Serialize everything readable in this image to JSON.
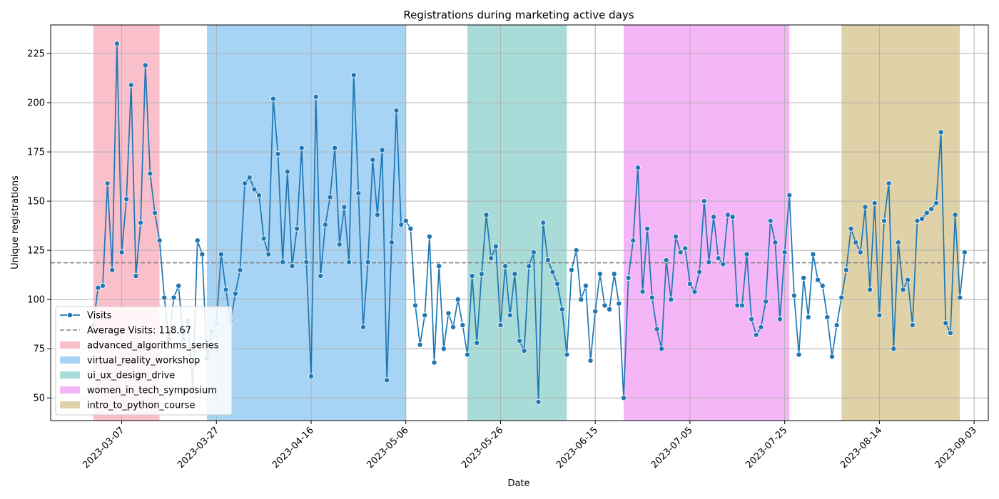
{
  "chart_data": {
    "type": "line",
    "title": "Registrations during marketing active days",
    "xlabel": "Date",
    "ylabel": "Unique registrations",
    "x_start": "2023-03-01",
    "xlim": [
      "2023-02-20",
      "2023-09-06"
    ],
    "ylim": [
      38.5,
      239.5
    ],
    "grid": true,
    "legend_position": "lower-left",
    "x_ticks": [
      "2023-03-07",
      "2023-03-27",
      "2023-04-16",
      "2023-05-06",
      "2023-05-26",
      "2023-06-15",
      "2023-07-05",
      "2023-07-25",
      "2023-08-14",
      "2023-09-03"
    ],
    "y_ticks": [
      50,
      75,
      100,
      125,
      150,
      175,
      200,
      225
    ],
    "series": [
      {
        "name": "Visits",
        "color": "#1f77b4",
        "values": [
          87,
          106,
          107,
          159,
          115,
          230,
          124,
          151,
          209,
          112,
          139,
          219,
          164,
          144,
          130,
          101,
          80,
          101,
          107,
          80,
          89,
          55,
          130,
          123,
          70,
          84,
          88,
          123,
          105,
          89,
          103,
          115,
          159,
          162,
          156,
          153,
          131,
          123,
          202,
          174,
          119,
          165,
          117,
          136,
          177,
          119,
          61,
          203,
          112,
          138,
          152,
          177,
          128,
          147,
          119,
          214,
          154,
          86,
          119,
          171,
          143,
          176,
          59,
          129,
          196,
          138,
          140,
          136,
          97,
          77,
          92,
          132,
          68,
          117,
          75,
          93,
          86,
          100,
          87,
          72,
          112,
          78,
          113,
          143,
          121,
          127,
          87,
          117,
          92,
          113,
          79,
          74,
          117,
          124,
          48,
          139,
          120,
          114,
          108,
          95,
          72,
          115,
          125,
          100,
          107,
          69,
          94,
          113,
          97,
          95,
          113,
          98,
          50,
          111,
          130,
          167,
          104,
          136,
          101,
          85,
          75,
          120,
          100,
          132,
          124,
          126,
          108,
          104,
          114,
          150,
          119,
          142,
          121,
          118,
          143,
          142,
          97,
          97,
          123,
          90,
          82,
          86,
          99,
          140,
          129,
          90,
          124,
          153,
          102,
          72,
          111,
          91,
          123,
          110,
          107,
          91,
          71,
          87,
          101,
          115,
          136,
          129,
          124,
          147,
          105,
          149,
          92,
          140,
          159,
          75,
          129,
          105,
          110,
          87,
          140,
          141,
          144,
          146,
          149,
          185,
          88,
          83,
          143,
          101,
          124
        ]
      }
    ],
    "average": {
      "value": 118.67,
      "label": "Average Visits: 118.67",
      "color": "#808080"
    },
    "campaigns": [
      {
        "name": "advanced_algorithms_series",
        "start": "2023-03-01",
        "end": "2023-03-15",
        "color": "#f9c0cb"
      },
      {
        "name": "virtual_reality_workshop",
        "start": "2023-03-25",
        "end": "2023-05-06",
        "color": "#a7d3f4"
      },
      {
        "name": "ui_ux_design_drive",
        "start": "2023-05-19",
        "end": "2023-06-09",
        "color": "#a9dcd8"
      },
      {
        "name": "women_in_tech_symposium",
        "start": "2023-06-21",
        "end": "2023-07-26",
        "color": "#f5b6f8"
      },
      {
        "name": "intro_to_python_course",
        "start": "2023-08-06",
        "end": "2023-08-31",
        "color": "#e0d2a8"
      }
    ]
  }
}
